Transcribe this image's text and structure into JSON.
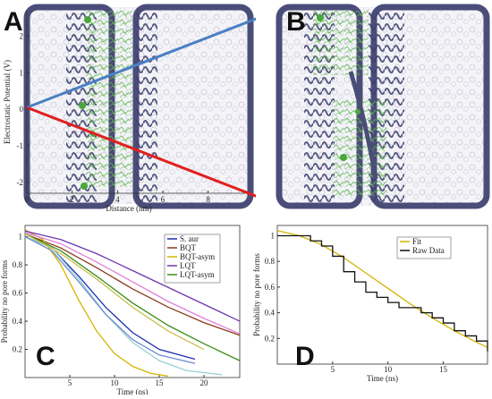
{
  "panels": {
    "a": {
      "letter": "A"
    },
    "b": {
      "letter": "B"
    },
    "c": {
      "letter": "C"
    },
    "d": {
      "letter": "D"
    }
  },
  "colors": {
    "membrane": "#4a4d78",
    "peptide": "#4aa63a",
    "field_blue": "#4a7fc4",
    "field_red": "#e02020"
  },
  "chart_data": [
    {
      "id": "A",
      "type": "line",
      "xlabel": "Distance (nm)",
      "ylabel": "Electrostatic Potential (V)",
      "xlim": [
        0,
        9
      ],
      "ylim": [
        -2.3,
        2.7
      ],
      "xticks": [
        0,
        2,
        4,
        6,
        8
      ],
      "yticks": [
        -2,
        -1,
        0,
        1,
        2
      ],
      "series": [
        {
          "color": "#4a7fc4",
          "x": [
            0,
            9
          ],
          "y": [
            0.05,
            2.3
          ]
        },
        {
          "color": "#e02020",
          "x": [
            0,
            9
          ],
          "y": [
            0.05,
            -2.2
          ]
        }
      ]
    },
    {
      "id": "C",
      "type": "line",
      "xlabel": "Time (ns)",
      "ylabel": "Probability no pore forms",
      "xlim": [
        0,
        24
      ],
      "ylim": [
        0,
        1.08
      ],
      "xticks": [
        5,
        10,
        15,
        20
      ],
      "yticks": [
        0.2,
        0.4,
        0.6,
        0.8,
        1
      ],
      "legend_position": "top-right",
      "series": [
        {
          "name": "S. aur",
          "color": "#1f2fb0",
          "x": [
            0,
            3,
            6,
            9,
            12,
            15,
            19
          ],
          "y": [
            1.0,
            0.92,
            0.72,
            0.5,
            0.32,
            0.2,
            0.13
          ]
        },
        {
          "name": "BQT",
          "color": "#8a3a1a",
          "x": [
            0,
            4,
            8,
            12,
            16,
            20,
            24
          ],
          "y": [
            1.02,
            0.92,
            0.78,
            0.63,
            0.5,
            0.39,
            0.3
          ]
        },
        {
          "name": "BQT-asym",
          "color": "#d4b400",
          "x": [
            0,
            2,
            4,
            6,
            8,
            10,
            12,
            14,
            16
          ],
          "y": [
            1.05,
            0.98,
            0.8,
            0.55,
            0.33,
            0.17,
            0.08,
            0.03,
            0.01
          ]
        },
        {
          "name": "LQT",
          "color": "#6a38b0",
          "x": [
            0,
            4,
            8,
            12,
            16,
            20,
            24
          ],
          "y": [
            1.04,
            0.98,
            0.88,
            0.76,
            0.64,
            0.52,
            0.4
          ]
        },
        {
          "name": "LQT-asym",
          "color": "#3c8c1c",
          "x": [
            0,
            4,
            8,
            12,
            16,
            20,
            24
          ],
          "y": [
            1.02,
            0.9,
            0.72,
            0.53,
            0.37,
            0.24,
            0.12
          ]
        },
        {
          "name": "",
          "color": "#e080d8",
          "x": [
            0,
            4,
            8,
            12,
            16,
            20,
            24
          ],
          "y": [
            1.03,
            0.95,
            0.82,
            0.68,
            0.54,
            0.42,
            0.31
          ]
        },
        {
          "name": "",
          "color": "#9ad0d0",
          "x": [
            0,
            3,
            6,
            9,
            12,
            15,
            18,
            22
          ],
          "y": [
            1.0,
            0.92,
            0.7,
            0.45,
            0.25,
            0.12,
            0.05,
            0.02
          ]
        },
        {
          "name": "",
          "color": "#6a8ad0",
          "x": [
            0,
            3,
            6,
            9,
            12,
            15,
            19
          ],
          "y": [
            1.0,
            0.9,
            0.68,
            0.45,
            0.27,
            0.16,
            0.1
          ]
        },
        {
          "name": "",
          "color": "#c8c050",
          "x": [
            0,
            4,
            8,
            12,
            16,
            20
          ],
          "y": [
            1.02,
            0.88,
            0.7,
            0.5,
            0.33,
            0.2
          ]
        }
      ]
    },
    {
      "id": "D",
      "type": "line",
      "xlabel": "Time (ns)",
      "ylabel": "Probability no pore forms",
      "xlim": [
        0,
        19
      ],
      "ylim": [
        0,
        1.08
      ],
      "xticks": [
        5,
        10,
        15
      ],
      "yticks": [
        0.2,
        0.4,
        0.6,
        0.8,
        1
      ],
      "legend_position": "top-right",
      "series": [
        {
          "name": "Fit",
          "color": "#d4b400",
          "x": [
            0,
            2,
            4,
            6,
            8,
            10,
            12,
            14,
            16,
            18,
            19
          ],
          "y": [
            1.04,
            1.0,
            0.93,
            0.83,
            0.71,
            0.59,
            0.47,
            0.36,
            0.26,
            0.17,
            0.13
          ]
        },
        {
          "name": "Raw Data",
          "color": "#111111",
          "step": true,
          "x": [
            0,
            3,
            4,
            5,
            6,
            7,
            8,
            9,
            10,
            11,
            12,
            13,
            14,
            15,
            16,
            17,
            18,
            19
          ],
          "y": [
            1.0,
            0.96,
            0.92,
            0.84,
            0.72,
            0.64,
            0.56,
            0.52,
            0.48,
            0.44,
            0.44,
            0.4,
            0.36,
            0.32,
            0.26,
            0.22,
            0.18,
            0.1
          ]
        }
      ]
    }
  ]
}
